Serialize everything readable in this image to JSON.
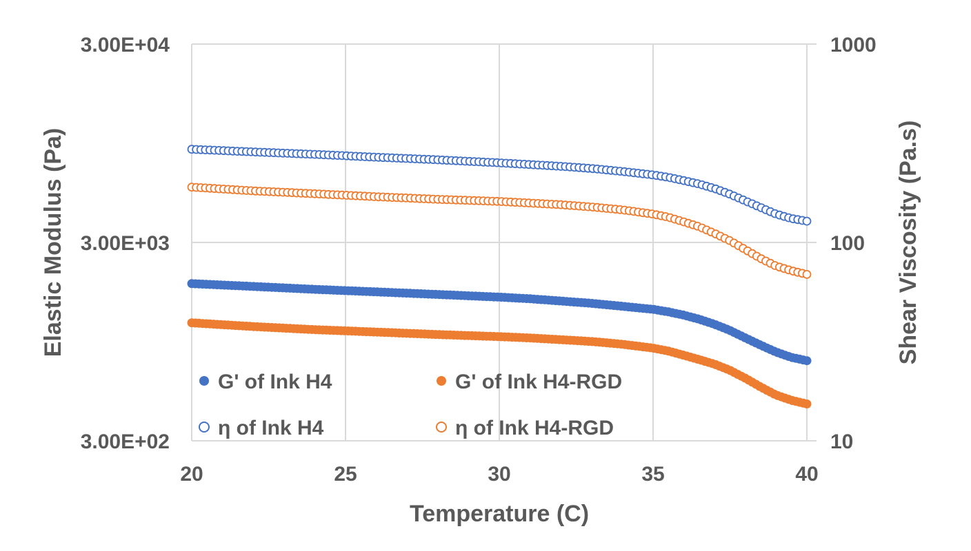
{
  "chart_data": {
    "type": "scatter",
    "xlabel": "Temperature (C)",
    "ylabel": "Elastic Modulus (Pa)",
    "y2label": "Shear Viscosity (Pa.s)",
    "xlim": [
      20,
      40
    ],
    "x_ticks": [
      "20",
      "25",
      "30",
      "35",
      "40"
    ],
    "ylim": [
      300,
      30000
    ],
    "y_scale": "log",
    "y_ticks": [
      "3.00E+04",
      "3.00E+03",
      "3.00E+02"
    ],
    "y2lim": [
      10,
      1000
    ],
    "y2_scale": "log",
    "y2_ticks": [
      "1000",
      "100",
      "10"
    ],
    "grid": true,
    "legend_position": "bottom-left, two columns",
    "colors": {
      "blue": "#4472c4",
      "orange": "#ed7d31",
      "text": "#595959",
      "grid": "#d9d9d9"
    },
    "series": [
      {
        "name": "G' of Ink H4",
        "axis": "left",
        "marker": "filled-circle",
        "color": "#4472c4",
        "points": [
          [
            20,
            1860
          ],
          [
            22,
            1800
          ],
          [
            24,
            1740
          ],
          [
            26,
            1690
          ],
          [
            28,
            1640
          ],
          [
            30,
            1590
          ],
          [
            31,
            1560
          ],
          [
            32,
            1520
          ],
          [
            33,
            1480
          ],
          [
            34,
            1430
          ],
          [
            35,
            1380
          ],
          [
            35.5,
            1340
          ],
          [
            36,
            1290
          ],
          [
            36.5,
            1230
          ],
          [
            37,
            1160
          ],
          [
            37.5,
            1080
          ],
          [
            38,
            990
          ],
          [
            38.5,
            910
          ],
          [
            39,
            840
          ],
          [
            39.5,
            790
          ],
          [
            40,
            760
          ]
        ]
      },
      {
        "name": "G' of Ink H4-RGD",
        "axis": "left",
        "marker": "filled-circle",
        "color": "#ed7d31",
        "points": [
          [
            20,
            1180
          ],
          [
            22,
            1130
          ],
          [
            24,
            1090
          ],
          [
            26,
            1060
          ],
          [
            28,
            1030
          ],
          [
            30,
            1005
          ],
          [
            31,
            990
          ],
          [
            32,
            970
          ],
          [
            33,
            950
          ],
          [
            34,
            920
          ],
          [
            35,
            880
          ],
          [
            35.5,
            850
          ],
          [
            36,
            810
          ],
          [
            36.5,
            770
          ],
          [
            37,
            730
          ],
          [
            37.5,
            680
          ],
          [
            38,
            620
          ],
          [
            38.5,
            560
          ],
          [
            39,
            510
          ],
          [
            39.5,
            480
          ],
          [
            40,
            460
          ]
        ]
      },
      {
        "name": "η of Ink H4",
        "axis": "right",
        "marker": "open-circle",
        "color": "#4472c4",
        "points": [
          [
            20,
            295
          ],
          [
            22,
            286
          ],
          [
            24,
            278
          ],
          [
            26,
            269
          ],
          [
            28,
            261
          ],
          [
            30,
            252
          ],
          [
            31,
            247
          ],
          [
            32,
            242
          ],
          [
            33,
            236
          ],
          [
            34,
            228
          ],
          [
            35,
            219
          ],
          [
            35.5,
            213
          ],
          [
            36,
            205
          ],
          [
            36.5,
            197
          ],
          [
            37,
            187
          ],
          [
            37.5,
            175
          ],
          [
            38,
            162
          ],
          [
            38.5,
            150
          ],
          [
            39,
            139
          ],
          [
            39.5,
            132
          ],
          [
            40,
            128
          ]
        ]
      },
      {
        "name": "η of Ink H4-RGD",
        "axis": "right",
        "marker": "open-circle",
        "color": "#ed7d31",
        "points": [
          [
            20,
            190
          ],
          [
            22,
            182
          ],
          [
            24,
            176
          ],
          [
            26,
            170
          ],
          [
            28,
            165
          ],
          [
            30,
            161
          ],
          [
            31,
            158
          ],
          [
            32,
            155
          ],
          [
            33,
            151
          ],
          [
            34,
            146
          ],
          [
            35,
            139
          ],
          [
            35.5,
            134
          ],
          [
            36,
            127
          ],
          [
            36.5,
            120
          ],
          [
            37,
            111
          ],
          [
            37.5,
            102
          ],
          [
            38,
            92
          ],
          [
            38.5,
            83
          ],
          [
            39,
            76
          ],
          [
            39.5,
            72
          ],
          [
            40,
            69
          ]
        ]
      }
    ]
  }
}
